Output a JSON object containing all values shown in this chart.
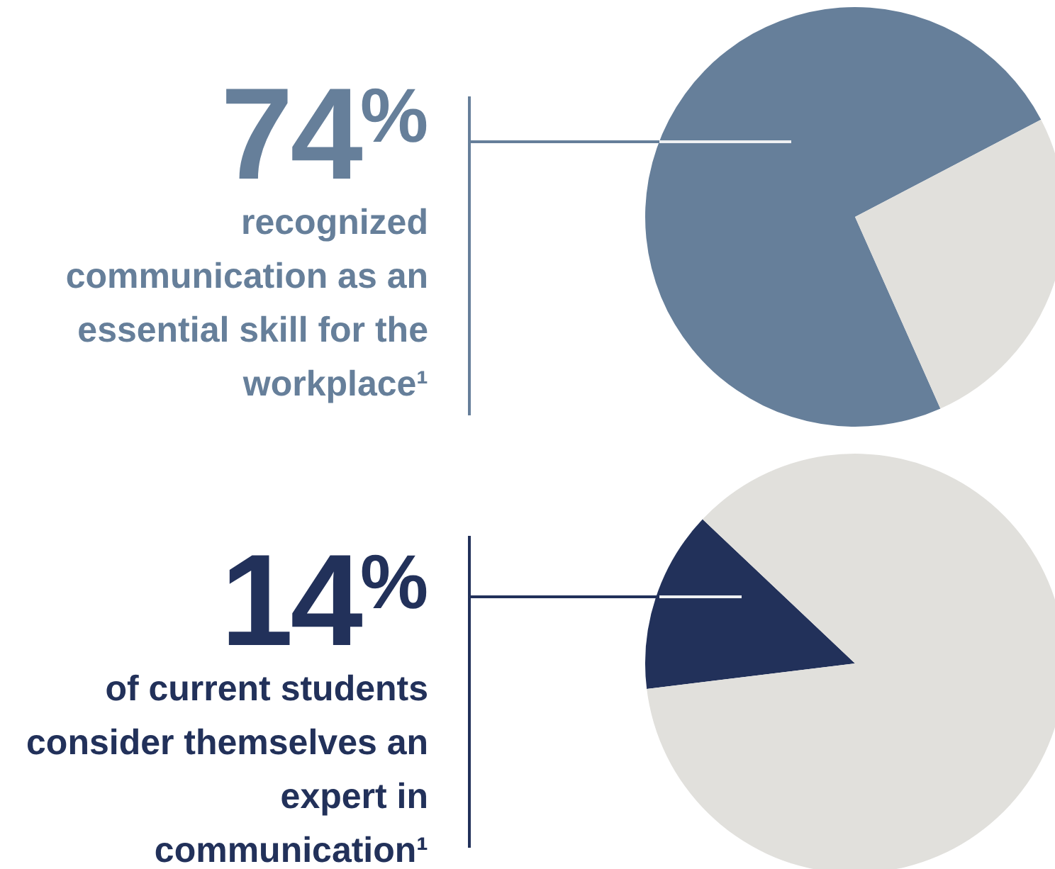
{
  "chart_data": [
    {
      "type": "pie",
      "categories": [
        null,
        null
      ],
      "values": [
        74,
        26
      ],
      "colors": [
        "#667f9a",
        "#e1e0dc"
      ],
      "value_labels": [
        "74%",
        null
      ],
      "annotations": [
        "recognized communication as an essential skill for the workplace¹"
      ]
    },
    {
      "type": "pie",
      "categories": [
        null,
        null
      ],
      "values": [
        14,
        86
      ],
      "colors": [
        "#22315a",
        "#e1e0dc"
      ],
      "value_labels": [
        "14%",
        null
      ],
      "annotations": [
        "of current students consider themselves an expert in communication¹"
      ]
    }
  ]
}
